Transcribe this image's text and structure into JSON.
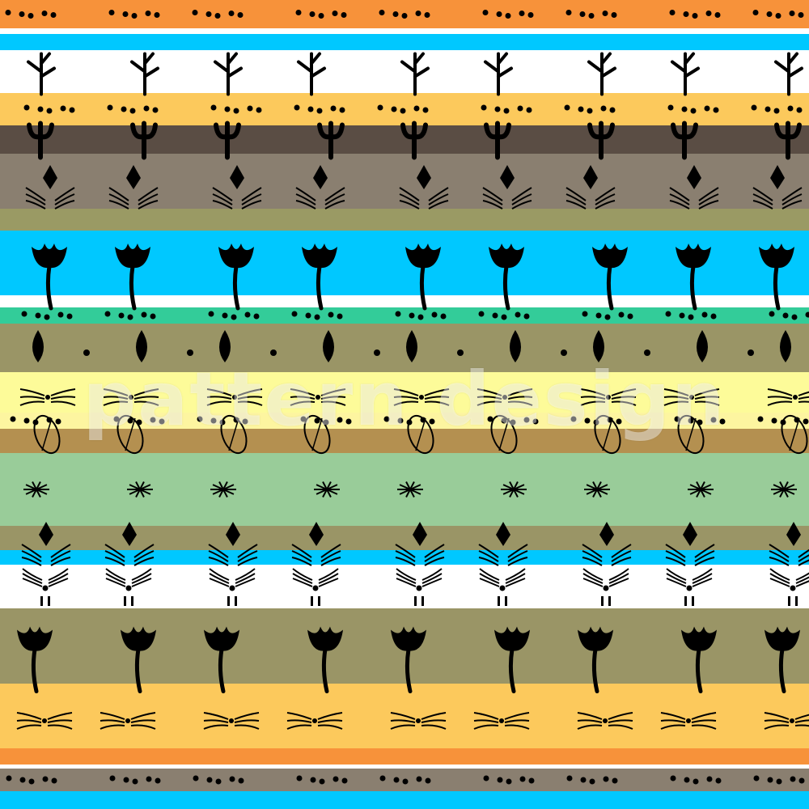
{
  "watermark": "pattern design",
  "stripes": [
    {
      "color": "#f7923a",
      "motif": "dots"
    },
    {
      "color": "#ffffff",
      "motif": "none"
    },
    {
      "color": "#00c8ff",
      "motif": "none"
    },
    {
      "color": "#ffffff",
      "motif": "twig"
    },
    {
      "color": "#fcc95c",
      "motif": "dots"
    },
    {
      "color": "#5a4d44",
      "motif": "sprout"
    },
    {
      "color": "#8a7f70",
      "motif": "diamond"
    },
    {
      "color": "#9a9a64",
      "motif": "none"
    },
    {
      "color": "#00c8ff",
      "motif": "tulip"
    },
    {
      "color": "#ffffff",
      "motif": "none"
    },
    {
      "color": "#33cc99",
      "motif": "dots"
    },
    {
      "color": "#9a9566",
      "motif": "leaf"
    },
    {
      "color": "#fdfb99",
      "motif": "whisker"
    },
    {
      "color": "#fdf5a0",
      "motif": "dots"
    },
    {
      "color": "#b49050",
      "motif": "seed"
    },
    {
      "color": "#99cc99",
      "motif": "star"
    },
    {
      "color": "#9a9566",
      "motif": "diamond"
    },
    {
      "color": "#00c8ff",
      "motif": "none"
    },
    {
      "color": "#ffffff",
      "motif": "face"
    },
    {
      "color": "#9a9566",
      "motif": "tulip"
    },
    {
      "color": "#fcc95c",
      "motif": "whisker"
    },
    {
      "color": "#f7923a",
      "motif": "none"
    },
    {
      "color": "#ffffff",
      "motif": "none"
    },
    {
      "color": "#8a7f70",
      "motif": "dots"
    },
    {
      "color": "#00c8ff",
      "motif": "none"
    }
  ]
}
